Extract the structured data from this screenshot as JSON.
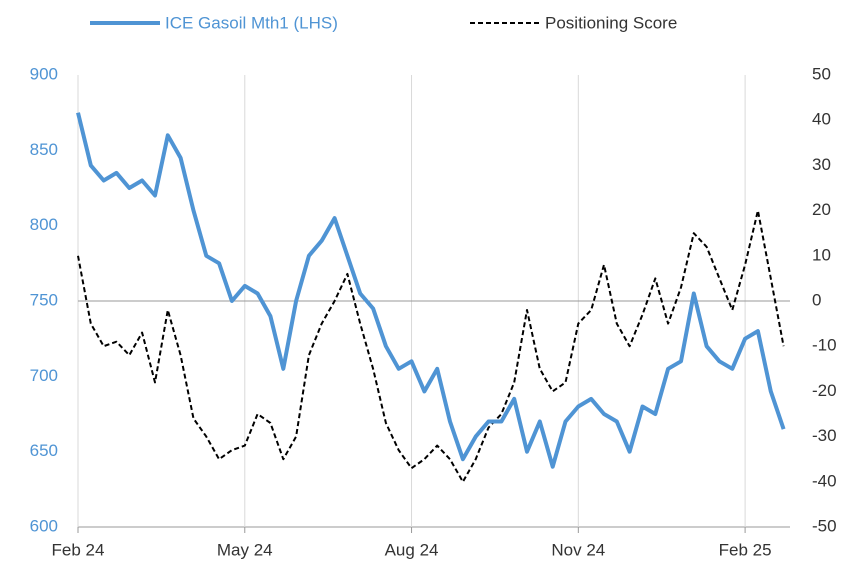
{
  "chart_data": {
    "type": "line",
    "x": [
      0,
      1,
      2,
      3,
      4,
      5,
      6,
      7,
      8,
      9,
      10,
      11,
      12,
      13,
      14,
      15,
      16,
      17,
      18,
      19,
      20,
      21,
      22,
      23,
      24,
      25,
      26,
      27,
      28,
      29,
      30,
      31,
      32,
      33,
      34,
      35,
      36,
      37,
      38,
      39,
      40,
      41,
      42,
      43,
      44,
      45,
      46,
      47,
      48,
      49,
      50,
      51,
      52,
      53,
      54,
      55
    ],
    "xlim": [
      0,
      55.5
    ],
    "xticks": [
      {
        "value": 0,
        "label": "Feb 24"
      },
      {
        "value": 13,
        "label": "May 24"
      },
      {
        "value": 26,
        "label": "Aug 24"
      },
      {
        "value": 39,
        "label": "Nov 24"
      },
      {
        "value": 52,
        "label": "Feb 25"
      }
    ],
    "ylim": [
      600,
      900
    ],
    "yticks": [
      600,
      650,
      700,
      750,
      800,
      850,
      900
    ],
    "y2lim": [
      -50,
      50
    ],
    "y2ticks": [
      -50,
      -40,
      -30,
      -20,
      -10,
      0,
      10,
      20,
      30,
      40,
      50
    ],
    "series": [
      {
        "name": "ICE Gasoil Mth1 (LHS)",
        "color": "#4f94d4",
        "dash": false,
        "values": [
          875,
          840,
          830,
          835,
          825,
          830,
          820,
          860,
          845,
          810,
          780,
          775,
          750,
          760,
          755,
          740,
          705,
          750,
          780,
          790,
          805,
          780,
          755,
          745,
          720,
          705,
          710,
          690,
          705,
          670,
          645,
          660,
          670,
          670,
          685,
          650,
          670,
          640,
          670,
          680,
          685,
          675,
          670,
          650,
          680,
          675,
          705,
          710,
          755,
          720,
          710,
          705,
          725,
          730,
          690,
          665
        ]
      },
      {
        "name": "Positioning Score",
        "color": "#000000",
        "dash": true,
        "axis": "y2",
        "values": [
          10,
          -5,
          -10,
          -9,
          -12,
          -7,
          -18,
          -2,
          -12,
          -26,
          -30,
          -35,
          -33,
          -32,
          -25,
          -27,
          -35,
          -30,
          -12,
          -5,
          0,
          6,
          -5,
          -15,
          -27,
          -33,
          -37,
          -35,
          -32,
          -35,
          -40,
          -35,
          -28,
          -25,
          -18,
          -2,
          -15,
          -20,
          -18,
          -5,
          -2,
          8,
          -5,
          -10,
          -3,
          5,
          -5,
          3,
          15,
          12,
          5,
          -2,
          8,
          20,
          5,
          -10
        ]
      }
    ]
  }
}
